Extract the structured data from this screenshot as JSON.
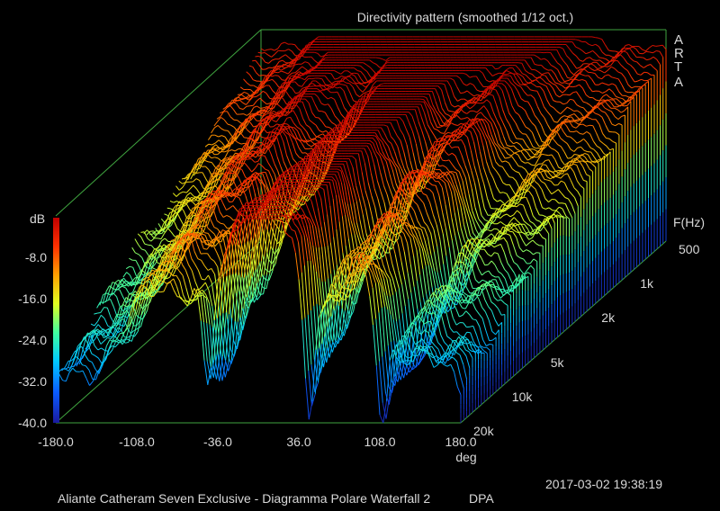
{
  "chart_data": {
    "type": "waterfall-3d",
    "title": "Directivity pattern (smoothed 1/12 oct.)",
    "brand_letters": [
      "A",
      "R",
      "T",
      "A"
    ],
    "z_label": "dB",
    "z_ticks": [
      "-8.0",
      "-16.0",
      "-24.0",
      "-32.0",
      "-40.0"
    ],
    "zlim": [
      -40,
      0
    ],
    "x_label": "deg",
    "x_ticks": [
      "-180.0",
      "-108.0",
      "-36.0",
      "36.0",
      "108.0",
      "180.0"
    ],
    "xlim": [
      -180,
      180
    ],
    "y_label": "F(Hz)",
    "y_ticks": [
      "500",
      "1k",
      "2k",
      "5k",
      "10k",
      "20k"
    ],
    "ylim_hz": [
      500,
      20000
    ],
    "colormap": [
      "#1a1aa0",
      "#0a5cff",
      "#00c8ff",
      "#40ffa0",
      "#e0ff20",
      "#ffa000",
      "#ff3000",
      "#c00000"
    ],
    "lobes": [
      {
        "center_deg": 0,
        "peak_db": -3,
        "width_deg": 55
      },
      {
        "center_deg": -90,
        "peak_db": -8,
        "width_deg": 40
      },
      {
        "center_deg": 90,
        "peak_db": -9,
        "width_deg": 40
      }
    ],
    "nulls_at_high_freq_deg": [
      -45,
      45,
      110
    ]
  },
  "footer": {
    "caption": "Aliante Catheram Seven Exclusive - Diagramma Polare Waterfall 2",
    "tag": "DPA",
    "timestamp": "2017-03-02  19:38:19"
  }
}
